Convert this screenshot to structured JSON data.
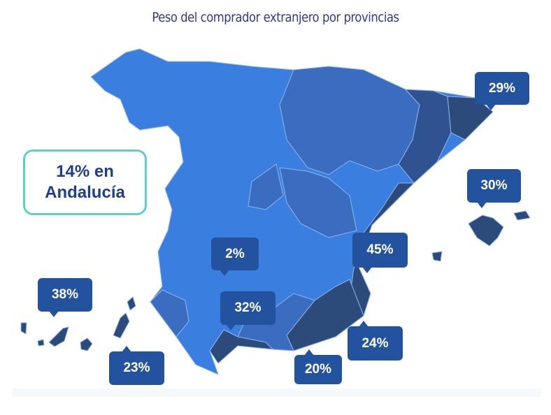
{
  "title": "Peso del comprador extranjero por provincias",
  "highlight": {
    "line1": "14% en",
    "line2": "Andalucía"
  },
  "colors": {
    "low": "#3a7fdf",
    "mid": "#3a6cc0",
    "high": "#2c4a7a",
    "label": "#23539f",
    "highlight_border": "#5ecfca"
  },
  "callouts": [
    {
      "id": "girona",
      "label": "29%"
    },
    {
      "id": "baleares",
      "label": "30%"
    },
    {
      "id": "alicante",
      "label": "45%"
    },
    {
      "id": "ciudad-real",
      "label": "2%"
    },
    {
      "id": "malaga",
      "label": "32%"
    },
    {
      "id": "murcia",
      "label": "24%"
    },
    {
      "id": "almeria",
      "label": "20%"
    },
    {
      "id": "las-palmas",
      "label": "23%"
    },
    {
      "id": "santa-cruz-de-tenerife",
      "label": "38%"
    }
  ]
}
